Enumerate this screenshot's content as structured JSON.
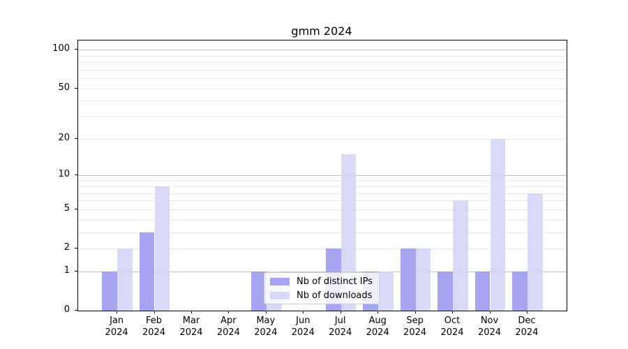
{
  "chart_data": {
    "type": "bar",
    "title": "gmm 2024",
    "categories": [
      "Jan\n2024",
      "Feb\n2024",
      "Mar\n2024",
      "Apr\n2024",
      "May\n2024",
      "Jun\n2024",
      "Jul\n2024",
      "Aug\n2024",
      "Sep\n2024",
      "Oct\n2024",
      "Nov\n2024",
      "Dec\n2024"
    ],
    "series": [
      {
        "name": "Nb of distinct IPs",
        "color": "#9b9bf0",
        "values": [
          1,
          3,
          0,
          0,
          1,
          0,
          2,
          1,
          2,
          1,
          1,
          1
        ]
      },
      {
        "name": "Nb of downloads",
        "color": "#d4d4f6",
        "values": [
          2,
          8,
          0,
          0,
          1,
          0,
          15,
          1,
          2,
          6,
          20,
          7
        ]
      }
    ],
    "yticks": [
      0,
      1,
      2,
      5,
      10,
      20,
      50,
      100
    ],
    "ytick_labels": [
      "0",
      "1",
      "2",
      "5",
      "10",
      "20",
      "50",
      "100"
    ],
    "scale": "log1p",
    "ylim": [
      0,
      118
    ],
    "grid": true,
    "gridlines": {
      "major": [
        1,
        10,
        100
      ],
      "minor": [
        2,
        3,
        4,
        5,
        6,
        7,
        8,
        9,
        20,
        30,
        40,
        50,
        60,
        70,
        80,
        90
      ]
    },
    "legend_position": "lower center",
    "colors": {
      "major_grid": "#c0c0c0",
      "minor_grid": "#eaeaea",
      "axis": "#000000"
    }
  }
}
